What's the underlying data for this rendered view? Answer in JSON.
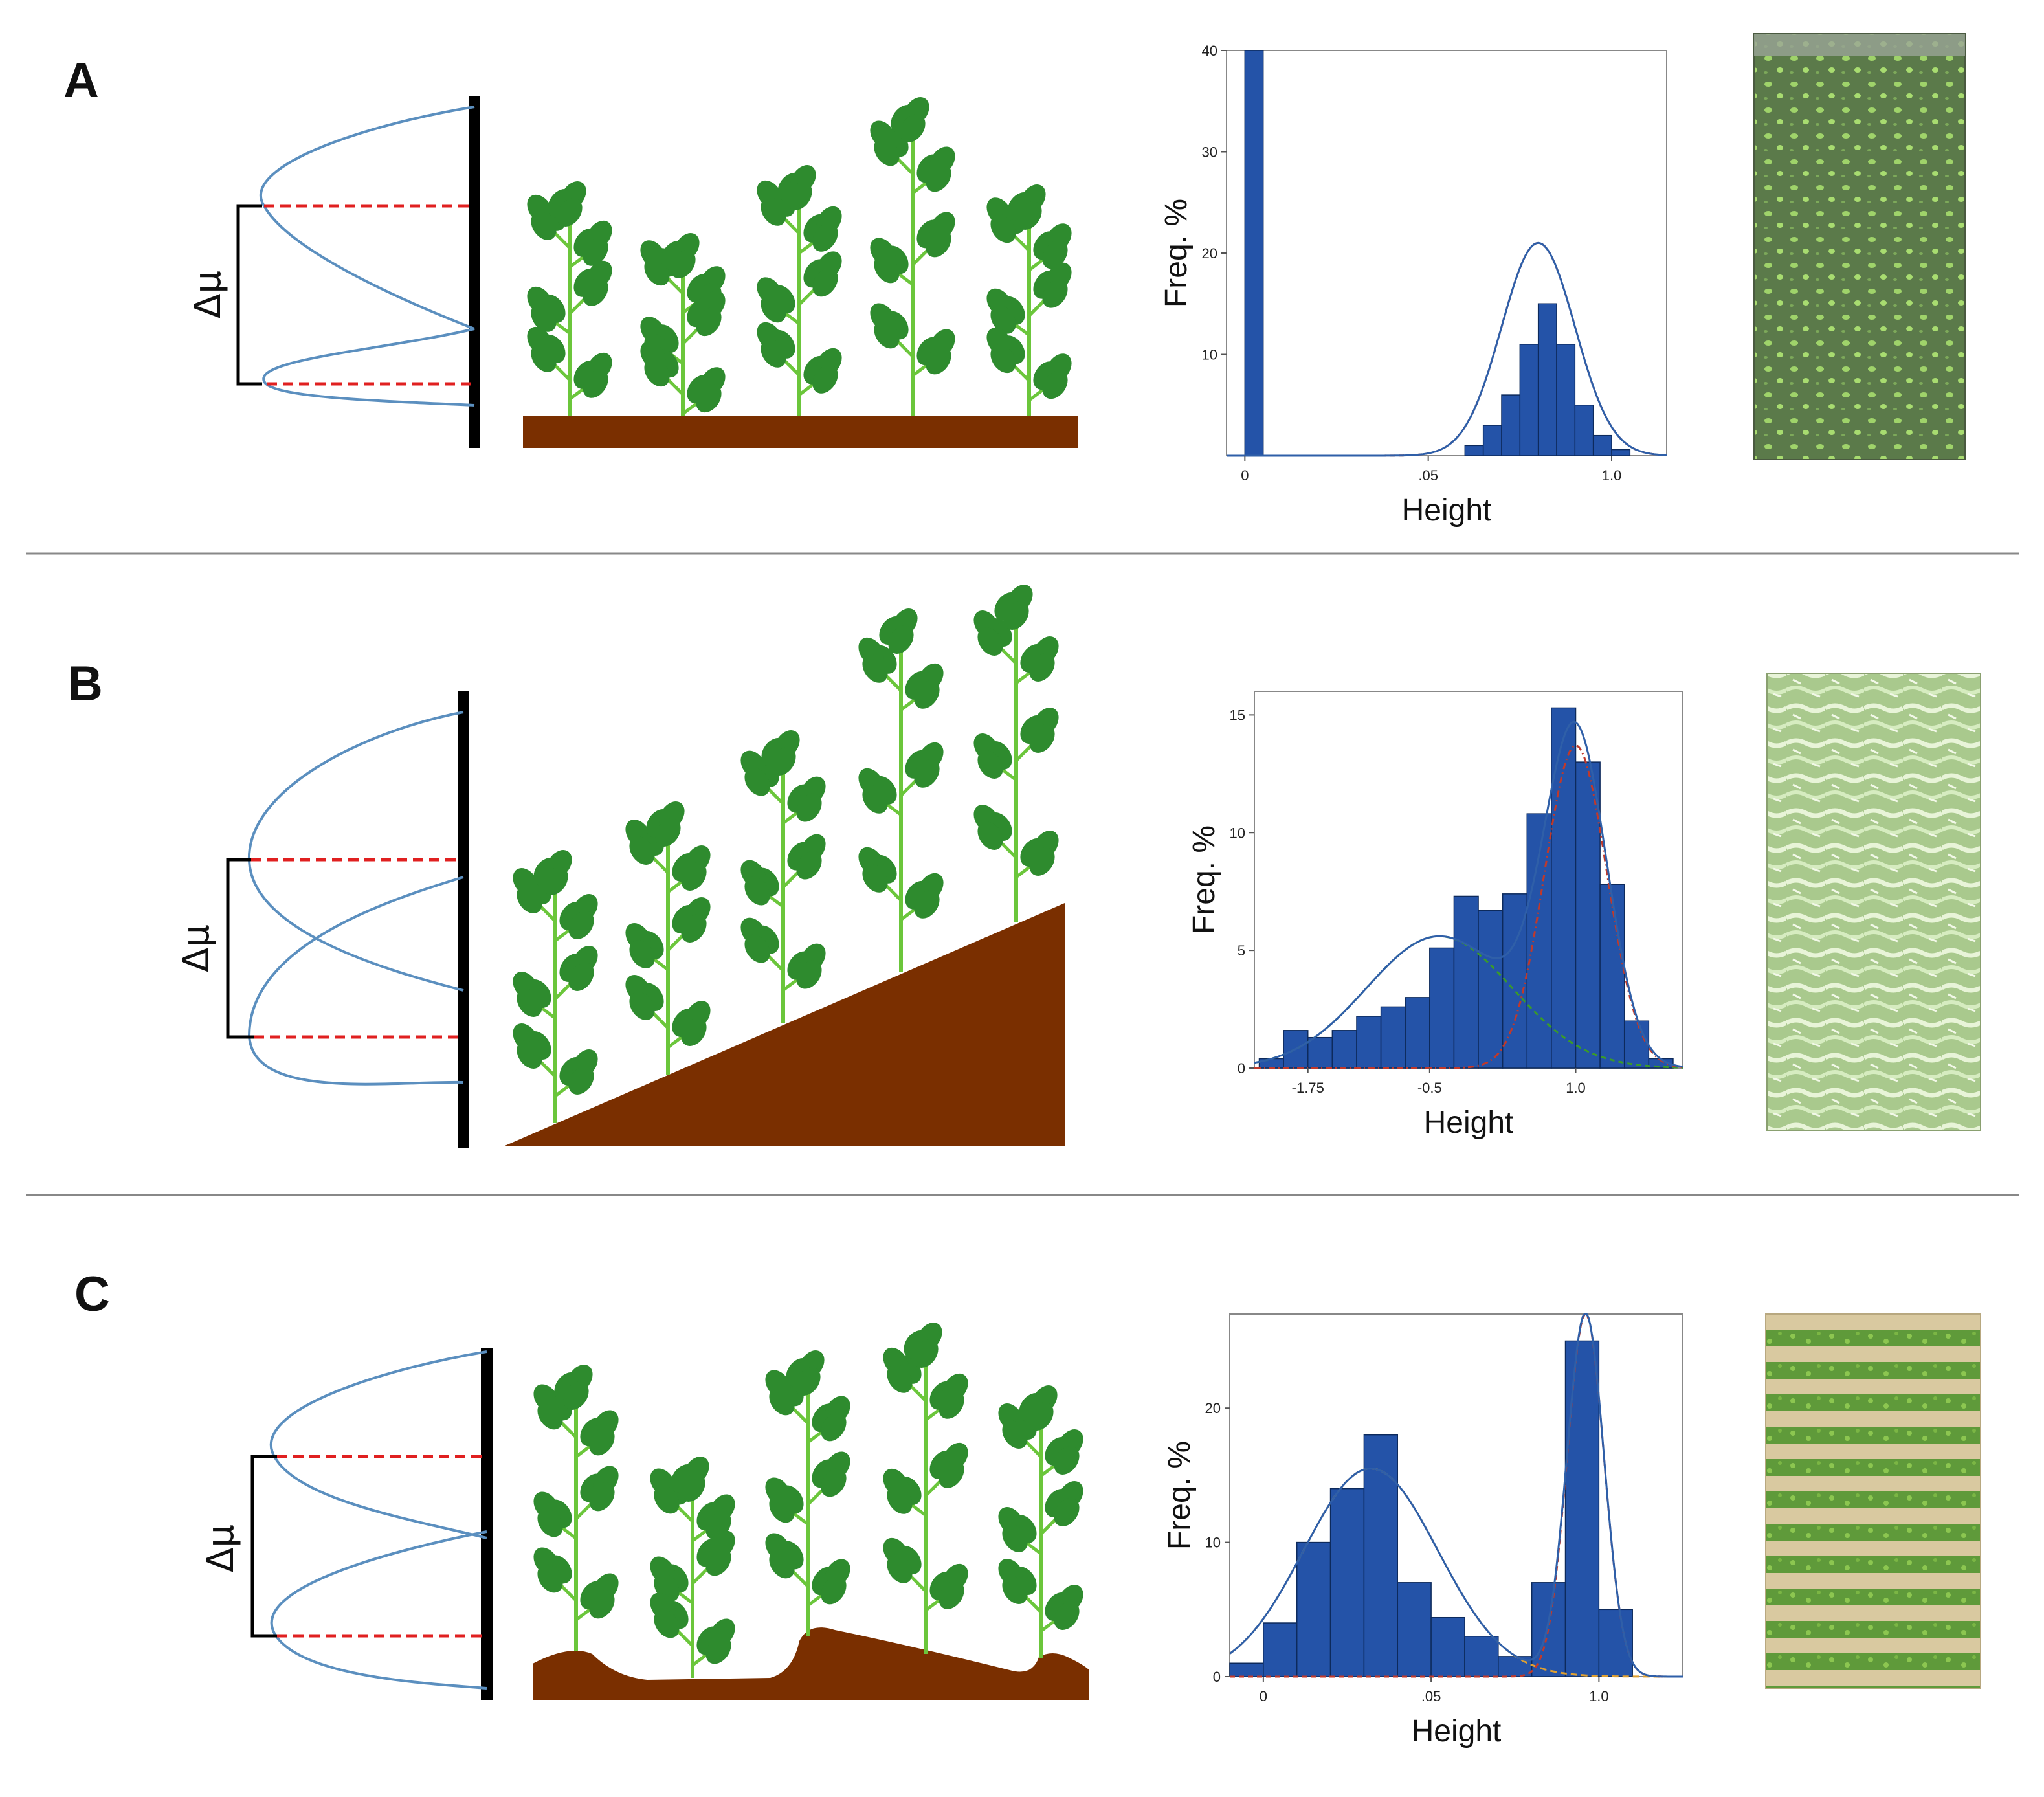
{
  "panels": [
    {
      "letter": "A",
      "delta_label": "Δμ",
      "ground": "flat",
      "chart_data": {
        "type": "bar",
        "xlabel": "Height",
        "ylabel": "Freq. %",
        "xticks": [
          "0",
          ".05",
          "1.0"
        ],
        "yticks": [
          "10",
          "20",
          "30",
          "40"
        ],
        "ylim": [
          0,
          40
        ],
        "grid": false,
        "bins": [
          {
            "x0": 0.0,
            "x1": 0.05,
            "value": 40
          },
          {
            "x0": 0.6,
            "x1": 0.65,
            "value": 1
          },
          {
            "x0": 0.65,
            "x1": 0.7,
            "value": 3
          },
          {
            "x0": 0.7,
            "x1": 0.75,
            "value": 6
          },
          {
            "x0": 0.75,
            "x1": 0.8,
            "value": 11
          },
          {
            "x0": 0.8,
            "x1": 0.85,
            "value": 15
          },
          {
            "x0": 0.85,
            "x1": 0.9,
            "value": 11
          },
          {
            "x0": 0.9,
            "x1": 0.95,
            "value": 5
          },
          {
            "x0": 0.95,
            "x1": 1.0,
            "value": 2
          },
          {
            "x0": 1.0,
            "x1": 1.05,
            "value": 0.6
          }
        ],
        "fits": [
          {
            "color": "#c0392b",
            "dash": "8 6",
            "mean": 0.8,
            "sd": 0.1,
            "peak": 21
          },
          {
            "color": "#2f5fa8",
            "dash": "",
            "mean": 0.8,
            "sd": 0.1,
            "peak": 21
          }
        ]
      },
      "photo": "soybean-rows-sparse"
    },
    {
      "letter": "B",
      "delta_label": "Δμ",
      "ground": "slope",
      "chart_data": {
        "type": "bar",
        "xlabel": "Height",
        "ylabel": "Freq. %",
        "xticks": [
          "-1.75",
          "-0.5",
          "1.0"
        ],
        "yticks": [
          "0",
          "5",
          "10",
          "15"
        ],
        "ylim": [
          0,
          16
        ],
        "grid": false,
        "bins": [
          {
            "x0": -2.25,
            "x1": -2.0,
            "value": 0.4
          },
          {
            "x0": -2.0,
            "x1": -1.75,
            "value": 1.6
          },
          {
            "x0": -1.75,
            "x1": -1.5,
            "value": 1.3
          },
          {
            "x0": -1.5,
            "x1": -1.25,
            "value": 1.6
          },
          {
            "x0": -1.25,
            "x1": -1.0,
            "value": 2.2
          },
          {
            "x0": -1.0,
            "x1": -0.75,
            "value": 2.6
          },
          {
            "x0": -0.75,
            "x1": -0.5,
            "value": 3.0
          },
          {
            "x0": -0.5,
            "x1": -0.25,
            "value": 5.1
          },
          {
            "x0": -0.25,
            "x1": 0.0,
            "value": 7.3
          },
          {
            "x0": 0.0,
            "x1": 0.25,
            "value": 6.7
          },
          {
            "x0": 0.25,
            "x1": 0.5,
            "value": 7.4
          },
          {
            "x0": 0.5,
            "x1": 0.75,
            "value": 10.8
          },
          {
            "x0": 0.75,
            "x1": 1.0,
            "value": 15.3
          },
          {
            "x0": 1.0,
            "x1": 1.25,
            "value": 13.0
          },
          {
            "x0": 1.25,
            "x1": 1.5,
            "value": 7.8
          },
          {
            "x0": 1.5,
            "x1": 1.75,
            "value": 2.0
          },
          {
            "x0": 1.75,
            "x1": 2.0,
            "value": 0.4
          }
        ],
        "fits": [
          {
            "color": "#3a9a2a",
            "dash": "8 6",
            "mean": -0.4,
            "sd": 0.75,
            "peak": 5.6
          },
          {
            "color": "#c0392b",
            "dash": "10 5 2 5",
            "mean": 1.0,
            "sd": 0.32,
            "peak": 13.7
          },
          {
            "color": "#2f5fa8",
            "dash": "",
            "mixture": true
          }
        ]
      },
      "photo": "maize-rows-dense"
    },
    {
      "letter": "C",
      "delta_label": "Δμ",
      "ground": "bumpy",
      "chart_data": {
        "type": "bar",
        "xlabel": "Height",
        "ylabel": "Freq. %",
        "xticks": [
          "0",
          ".05",
          "1.0"
        ],
        "yticks": [
          "0",
          "10",
          "20"
        ],
        "ylim": [
          0,
          27
        ],
        "grid": false,
        "bins": [
          {
            "x0": -0.1,
            "x1": 0.0,
            "value": 1
          },
          {
            "x0": 0.0,
            "x1": 0.1,
            "value": 4
          },
          {
            "x0": 0.1,
            "x1": 0.2,
            "value": 10
          },
          {
            "x0": 0.2,
            "x1": 0.3,
            "value": 14
          },
          {
            "x0": 0.3,
            "x1": 0.4,
            "value": 18
          },
          {
            "x0": 0.4,
            "x1": 0.5,
            "value": 7
          },
          {
            "x0": 0.5,
            "x1": 0.6,
            "value": 4.4
          },
          {
            "x0": 0.6,
            "x1": 0.7,
            "value": 3
          },
          {
            "x0": 0.7,
            "x1": 0.8,
            "value": 1.5
          },
          {
            "x0": 0.8,
            "x1": 0.9,
            "value": 7
          },
          {
            "x0": 0.9,
            "x1": 1.0,
            "value": 25
          },
          {
            "x0": 1.0,
            "x1": 1.1,
            "value": 5
          }
        ],
        "fits": [
          {
            "color": "#e0a030",
            "dash": "10 6",
            "mean": 0.32,
            "sd": 0.2,
            "peak": 15.5
          },
          {
            "color": "#c0392b",
            "dash": "8 6",
            "mean": 0.96,
            "sd": 0.055,
            "peak": 27
          },
          {
            "color": "#2f5fa8",
            "dash": "",
            "mixture": true
          }
        ]
      },
      "photo": "crop-rows-strips"
    }
  ],
  "colors": {
    "bar_fill": "#2453a8",
    "bar_stroke": "#0d2a5c",
    "stem": "#6bc63b",
    "leaf": "#2e8b2e",
    "soil": "#7a2f00",
    "distribution": "#5b8fbf",
    "mean_line": "#e02020"
  }
}
